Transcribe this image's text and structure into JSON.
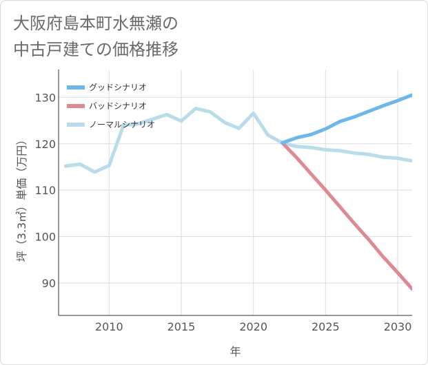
{
  "title": {
    "line1": "大阪府島本町水無瀬の",
    "line2": "中古戸建ての価格推移"
  },
  "colors": {
    "good": "#6cb8ea",
    "bad": "#de8a95",
    "normal": "#b8dcea",
    "grid": "#dddddd",
    "axis": "#333333"
  },
  "chart_data": {
    "type": "line",
    "title": "大阪府島本町水無瀬の中古戸建ての価格推移",
    "xlabel": "年",
    "ylabel": "坪（3.3㎡）単価（万円）",
    "xlim": [
      2006.5,
      2031
    ],
    "ylim": [
      83,
      136
    ],
    "x_ticks": [
      2010,
      2015,
      2020,
      2025,
      2030
    ],
    "y_ticks": [
      90,
      100,
      110,
      120,
      130
    ],
    "legend_position": "top-left",
    "series": [
      {
        "key": "good",
        "name": "グッドシナリオ",
        "x": [
          2022,
          2023,
          2024,
          2025,
          2026,
          2027,
          2028,
          2029,
          2030,
          2031
        ],
        "values": [
          120.2,
          121.3,
          122.0,
          123.2,
          124.8,
          125.8,
          127.0,
          128.2,
          129.3,
          130.5
        ]
      },
      {
        "key": "bad",
        "name": "バッドシナリオ",
        "x": [
          2022,
          2023,
          2024,
          2025,
          2026,
          2027,
          2028,
          2029,
          2030,
          2031
        ],
        "values": [
          120.2,
          117.0,
          113.5,
          110.0,
          106.4,
          102.8,
          99.3,
          95.6,
          92.2,
          88.7
        ]
      },
      {
        "key": "normal",
        "name": "ノーマルシナリオ",
        "x": [
          2007,
          2008,
          2009,
          2010,
          2011,
          2012,
          2013,
          2014,
          2015,
          2016,
          2017,
          2018,
          2019,
          2020,
          2021,
          2022,
          2023,
          2024,
          2025,
          2026,
          2027,
          2028,
          2029,
          2030,
          2031
        ],
        "values": [
          115.2,
          115.6,
          113.9,
          115.3,
          124.0,
          124.3,
          125.3,
          126.3,
          124.9,
          127.6,
          126.9,
          124.6,
          123.3,
          126.6,
          121.9,
          120.2,
          119.4,
          119.2,
          118.7,
          118.5,
          118.0,
          117.7,
          117.1,
          116.9,
          116.3
        ]
      }
    ]
  }
}
